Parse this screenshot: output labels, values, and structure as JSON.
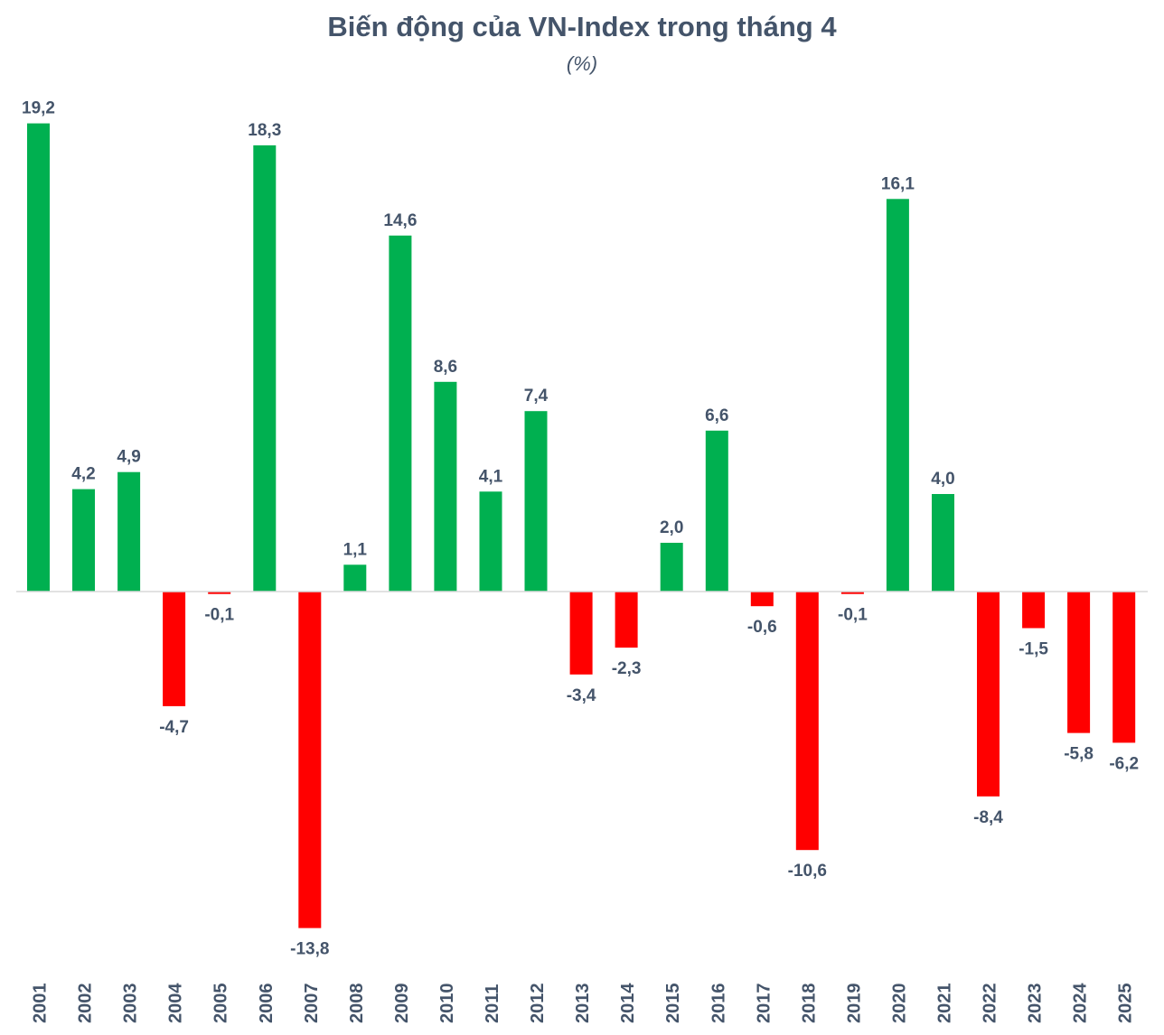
{
  "chart_data": {
    "type": "bar",
    "title": "Biến động của VN-Index trong tháng 4",
    "subtitle": "(%)",
    "xlabel": "",
    "ylabel": "",
    "categories": [
      "2001",
      "2002",
      "2003",
      "2004",
      "2005",
      "2006",
      "2007",
      "2008",
      "2009",
      "2010",
      "2011",
      "2012",
      "2013",
      "2014",
      "2015",
      "2016",
      "2017",
      "2018",
      "2019",
      "2020",
      "2021",
      "2022",
      "2023",
      "2024",
      "2025"
    ],
    "values": [
      19.2,
      4.2,
      4.9,
      -4.7,
      -0.1,
      18.3,
      -13.8,
      1.1,
      14.6,
      8.6,
      4.1,
      7.4,
      -3.4,
      -2.3,
      2.0,
      6.6,
      -0.6,
      -10.6,
      -0.1,
      16.1,
      4.0,
      -8.4,
      -1.5,
      -5.8,
      -6.2
    ],
    "data_labels": [
      "19,2",
      "4,2",
      "4,9",
      "-4,7",
      "-0,1",
      "18,3",
      "-13,8",
      "1,1",
      "14,6",
      "8,6",
      "4,1",
      "7,4",
      "-3,4",
      "-2,3",
      "2,0",
      "6,6",
      "-0,6",
      "-10,6",
      "-0,1",
      "16,1",
      "4,0",
      "-8,4",
      "-1,5",
      "-5,8",
      "-6,2"
    ],
    "ylim": [
      -14,
      20
    ],
    "grid": false,
    "legend": "none",
    "colors": {
      "positive": "#00b050",
      "negative": "#ff0000",
      "text": "#44546a",
      "axis": "#d9d9d9"
    }
  }
}
